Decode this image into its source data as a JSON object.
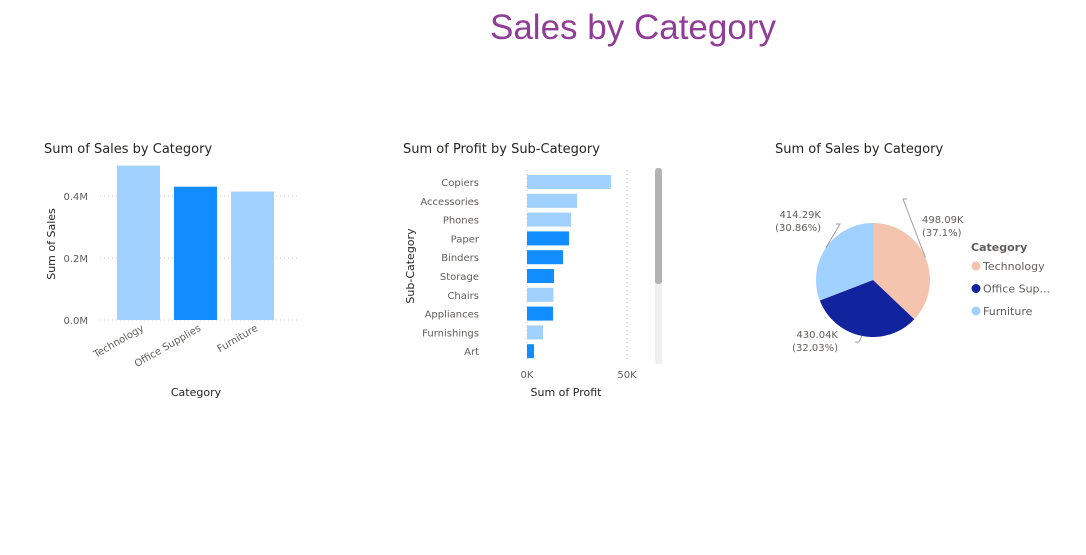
{
  "page": {
    "title": "Sales by Category"
  },
  "colors": {
    "title": "#8F3D96",
    "bar_light": "#A0D1FF",
    "bar_dark": "#118DFF",
    "pie_technology": "#F4C4AF",
    "pie_office": "#12239E",
    "pie_furniture": "#A0D1FF",
    "gridline": "#C8C6C4",
    "scrollbar_thumb": "#B3B3B3",
    "scrollbar_track": "#F0F0F0"
  },
  "chart_data": [
    {
      "type": "bar",
      "title": "Sum of Sales by Category",
      "xlabel": "Category",
      "ylabel": "Sum of Sales",
      "categories": [
        "Technology",
        "Office Supplies",
        "Furniture"
      ],
      "values": [
        498090,
        430040,
        414290
      ],
      "highlighted": [
        false,
        true,
        false
      ],
      "ylim": [
        0,
        500000
      ],
      "yticks": [
        {
          "value": 0,
          "label": "0.0M"
        },
        {
          "value": 200000,
          "label": "0.2M"
        },
        {
          "value": 400000,
          "label": "0.4M"
        }
      ],
      "grid": true
    },
    {
      "type": "bar",
      "orientation": "horizontal",
      "title": "Sum of Profit by Sub-Category",
      "xlabel": "Sum of Profit",
      "ylabel": "Sub-Category",
      "categories": [
        "Copiers",
        "Accessories",
        "Phones",
        "Paper",
        "Binders",
        "Storage",
        "Chairs",
        "Appliances",
        "Furnishings",
        "Art"
      ],
      "values": [
        42000,
        25000,
        22000,
        21000,
        18000,
        13500,
        13200,
        13000,
        8000,
        3500
      ],
      "highlighted": [
        false,
        false,
        false,
        true,
        true,
        true,
        false,
        true,
        false,
        true
      ],
      "xlim": [
        0,
        50000
      ],
      "xticks": [
        {
          "value": 0,
          "label": "0K"
        },
        {
          "value": 50000,
          "label": "50K"
        }
      ],
      "grid": true,
      "scrollbar": true
    },
    {
      "type": "pie",
      "title": "Sum of Sales by Category",
      "legend_title": "Category",
      "legend_position": "right",
      "slices": [
        {
          "name": "Technology",
          "legend_label": "Technology",
          "value": 498090,
          "label_value": "498.09K",
          "label_pct": "(37.1%)"
        },
        {
          "name": "Office Supplies",
          "legend_label": "Office Sup...",
          "value": 430040,
          "label_value": "430.04K",
          "label_pct": "(32.03%)"
        },
        {
          "name": "Furniture",
          "legend_label": "Furniture",
          "value": 414290,
          "label_value": "414.29K",
          "label_pct": "(30.86%)"
        }
      ]
    }
  ]
}
